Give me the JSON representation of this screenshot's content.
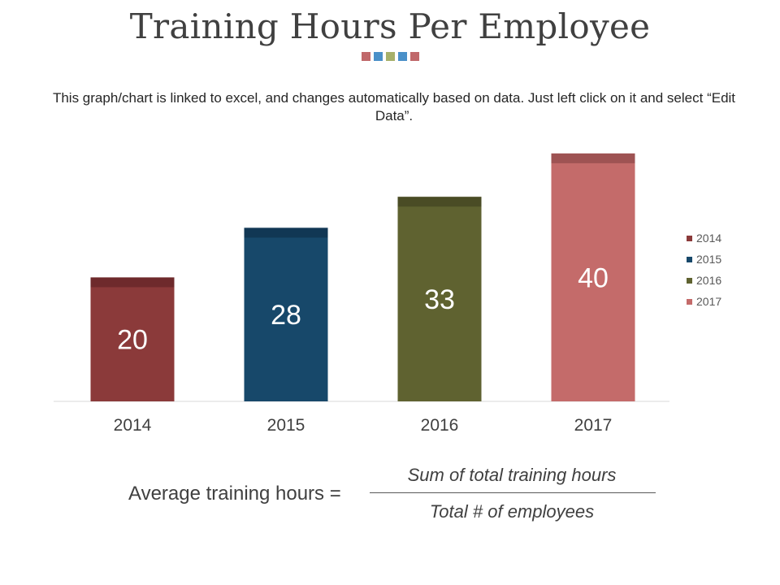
{
  "title": "Training Hours Per Employee",
  "decor_colors": [
    "#c0686a",
    "#4a90c8",
    "#a6b06a",
    "#4a90c8",
    "#c0686a"
  ],
  "note": "This graph/chart is linked to excel, and changes automatically based on data. Just left click on it and select “Edit Data”.",
  "formula": {
    "lhs": "Average training hours =",
    "numerator": "Sum of total training hours",
    "denominator": "Total # of employees"
  },
  "chart_data": {
    "type": "bar",
    "categories": [
      "2014",
      "2015",
      "2016",
      "2017"
    ],
    "values": [
      20,
      28,
      33,
      40
    ],
    "colors": [
      "#8b3a3a",
      "#17486a",
      "#5f6230",
      "#c46b6a"
    ],
    "cap_colors": [
      "#6e2a2c",
      "#113754",
      "#4a4c25",
      "#9e5353"
    ],
    "title": "",
    "xlabel": "",
    "ylabel": "",
    "ylim": [
      0,
      43
    ],
    "grid": false,
    "legend": {
      "placement": "right",
      "entries": [
        "2014",
        "2015",
        "2016",
        "2017"
      ]
    }
  }
}
